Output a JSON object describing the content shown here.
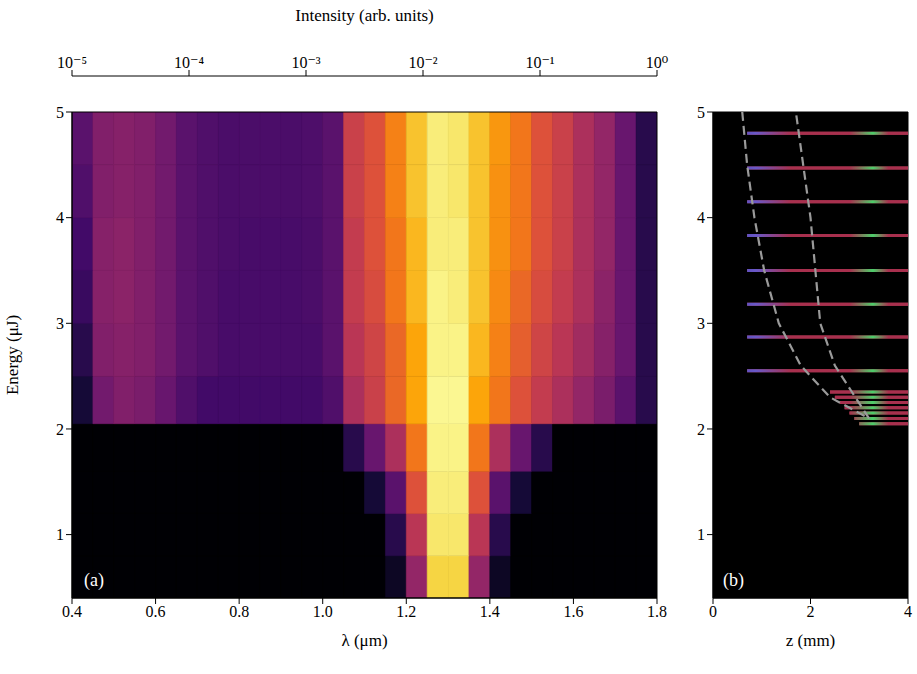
{
  "chart_data": [
    {
      "type": "heatmap",
      "x_label": "λ (μm)",
      "y_label": "Energy (μJ)",
      "annotation": "(a)",
      "xlim": [
        0.4,
        1.8
      ],
      "xticks": [
        0.4,
        0.6,
        0.8,
        {
          "value": 1,
          "label": "1.0"
        },
        1.2,
        1.4,
        1.6,
        1.8
      ],
      "ylim": [
        0.4,
        5
      ],
      "yticks": [
        1,
        2,
        3,
        4,
        5
      ],
      "x_edges": [
        0.4,
        0.45,
        0.5,
        0.55,
        0.6,
        0.65,
        0.7,
        0.75,
        0.8,
        0.85,
        0.9,
        0.95,
        1.0,
        1.05,
        1.1,
        1.15,
        1.2,
        1.25,
        1.3,
        1.35,
        1.4,
        1.45,
        1.5,
        1.55,
        1.6,
        1.65,
        1.7,
        1.75,
        1.8
      ],
      "y_edges": [
        0.4,
        0.8,
        1.2,
        1.6,
        2.05,
        2.5,
        3,
        3.5,
        4,
        4.5,
        5
      ],
      "cells": [
        [
          1e-05,
          1e-05,
          1e-05,
          1e-05,
          1e-05,
          1e-05,
          1e-05,
          1e-05,
          1e-05,
          1e-05,
          1e-05,
          1e-05,
          1e-05,
          1e-05,
          1e-05,
          2e-05,
          0.001,
          0.3,
          0.3,
          0.001,
          2e-05,
          1e-05,
          1e-05,
          1e-05,
          1e-05,
          1e-05,
          1e-05,
          1e-05
        ],
        [
          1e-05,
          1e-05,
          1e-05,
          1e-05,
          1e-05,
          1e-05,
          1e-05,
          1e-05,
          1e-05,
          1e-05,
          1e-05,
          1e-05,
          1e-05,
          1e-05,
          1e-05,
          5e-05,
          0.003,
          0.5,
          0.5,
          0.003,
          5e-05,
          1e-05,
          1e-05,
          1e-05,
          1e-05,
          1e-05,
          1e-05,
          1e-05
        ],
        [
          1e-05,
          1e-05,
          1e-05,
          1e-05,
          1e-05,
          1e-05,
          1e-05,
          1e-05,
          1e-05,
          1e-05,
          1e-05,
          1e-05,
          1e-05,
          1e-05,
          3e-05,
          0.0002,
          0.01,
          0.6,
          0.6,
          0.01,
          0.0002,
          3e-05,
          1e-05,
          1e-05,
          1e-05,
          1e-05,
          1e-05,
          1e-05
        ],
        [
          1e-05,
          1e-05,
          1e-05,
          1e-05,
          1e-05,
          1e-05,
          1e-05,
          1e-05,
          1e-05,
          1e-05,
          1e-05,
          1e-05,
          1e-05,
          5e-05,
          0.0003,
          0.002,
          0.03,
          0.7,
          0.7,
          0.03,
          0.002,
          0.0003,
          5e-05,
          1e-05,
          1e-05,
          1e-05,
          1e-05,
          1e-05
        ],
        [
          3e-05,
          0.0004,
          0.0006,
          0.0005,
          0.0003,
          0.00015,
          0.0001,
          0.0001,
          0.0001,
          0.0001,
          0.0001,
          0.0001,
          0.00015,
          0.002,
          0.005,
          0.02,
          0.1,
          0.8,
          0.8,
          0.1,
          0.03,
          0.01,
          0.004,
          0.002,
          0.001,
          0.0005,
          0.0002,
          5e-05
        ],
        [
          5e-05,
          0.0006,
          0.0007,
          0.0006,
          0.0004,
          0.0002,
          0.00015,
          0.00012,
          0.00012,
          0.00012,
          0.00012,
          0.00012,
          0.0002,
          0.003,
          0.006,
          0.02,
          0.1,
          0.7,
          0.7,
          0.15,
          0.04,
          0.015,
          0.006,
          0.003,
          0.0015,
          0.0007,
          0.0003,
          5e-05
        ],
        [
          8e-05,
          0.0007,
          0.0008,
          0.0006,
          0.0004,
          0.0002,
          0.00015,
          0.00012,
          0.00012,
          0.00012,
          0.00012,
          0.00013,
          0.0002,
          0.004,
          0.008,
          0.03,
          0.15,
          0.7,
          0.6,
          0.2,
          0.05,
          0.02,
          0.008,
          0.004,
          0.002,
          0.0008,
          0.0003,
          5e-05
        ],
        [
          0.0001,
          0.0007,
          0.0008,
          0.0006,
          0.0004,
          0.0002,
          0.00015,
          0.00013,
          0.00012,
          0.00012,
          0.00012,
          0.00013,
          0.0002,
          0.004,
          0.01,
          0.03,
          0.15,
          0.6,
          0.6,
          0.2,
          0.06,
          0.03,
          0.01,
          0.005,
          0.002,
          0.001,
          0.0003,
          5e-05
        ],
        [
          0.00015,
          0.0006,
          0.0007,
          0.0006,
          0.0004,
          0.0002,
          0.00015,
          0.00013,
          0.00013,
          0.00013,
          0.00013,
          0.00014,
          0.0002,
          0.005,
          0.01,
          0.04,
          0.2,
          0.6,
          0.5,
          0.2,
          0.06,
          0.03,
          0.01,
          0.005,
          0.002,
          0.001,
          0.0003,
          5e-05
        ],
        [
          0.0002,
          0.0006,
          0.0007,
          0.0006,
          0.0004,
          0.0002,
          0.00015,
          0.00013,
          0.00013,
          0.00013,
          0.00013,
          0.00014,
          0.0002,
          0.005,
          0.01,
          0.04,
          0.2,
          0.6,
          0.5,
          0.2,
          0.07,
          0.03,
          0.01,
          0.005,
          0.002,
          0.001,
          0.0003,
          5e-05
        ]
      ],
      "colorbar": {
        "label": "Intensity (arb. units)",
        "log": true,
        "lim": [
          1e-05,
          1
        ],
        "ticks": [
          {
            "value": 1e-05,
            "label": "10⁻⁵"
          },
          {
            "value": 0.0001,
            "label": "10⁻⁴"
          },
          {
            "value": 0.001,
            "label": "10⁻³"
          },
          {
            "value": 0.01,
            "label": "10⁻²"
          },
          {
            "value": 0.1,
            "label": "10⁻¹"
          },
          {
            "value": 1,
            "label": "10⁰"
          }
        ]
      }
    },
    {
      "type": "line",
      "x_label": "z (mm)",
      "annotation": "(b)",
      "xlim": [
        0,
        4
      ],
      "xticks": [
        0,
        2,
        4
      ],
      "ylim": [
        0.4,
        5
      ],
      "yticks": [
        1,
        2,
        3,
        4,
        5
      ],
      "series": [
        {
          "type": "segments",
          "color": "#b03a50",
          "y": [
            2.05,
            2.1,
            2.15,
            2.2,
            2.25,
            2.3,
            2.35,
            2.55,
            2.87,
            3.18,
            3.5,
            3.83,
            4.15,
            4.47,
            4.8
          ],
          "x_start": [
            3.0,
            2.9,
            2.8,
            2.7,
            2.6,
            2.5,
            2.4,
            0.7,
            0.7,
            0.7,
            0.7,
            0.7,
            0.7,
            0.7,
            0.7
          ],
          "x_end": [
            4,
            4,
            4,
            4,
            4,
            4,
            4,
            4,
            4,
            4,
            4,
            4,
            4,
            4,
            4
          ]
        },
        {
          "type": "line",
          "color": "#9a9a9a",
          "line_style": "dashed",
          "x": [
            0.6,
            0.7,
            0.85,
            1.05,
            1.35,
            1.8,
            2.4,
            3.0,
            3.2,
            2.85,
            2.5,
            2.2,
            2.1,
            2.0,
            1.85,
            1.7
          ],
          "values": [
            5.0,
            4.5,
            4.0,
            3.5,
            3.0,
            2.6,
            2.3,
            2.15,
            2.1,
            2.35,
            2.6,
            3.0,
            3.5,
            4.0,
            4.5,
            5.0
          ]
        }
      ]
    }
  ]
}
